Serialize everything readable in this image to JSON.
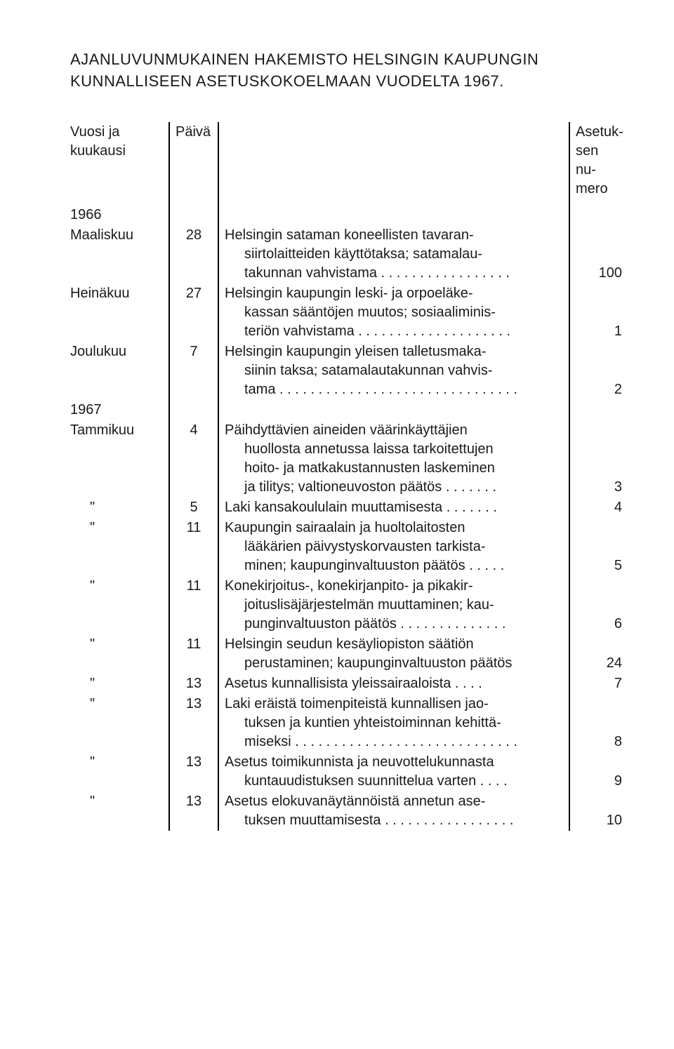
{
  "title_line1": "AJANLUVUNMUKAINEN HAKEMISTO HELSINGIN KAUPUNGIN",
  "title_line2": "KUNNALLISEEN ASETUSKOKOELMAAN VUODELTA 1967.",
  "headers": {
    "col1": "Vuosi ja\nkuukausi",
    "col2": "Päivä",
    "col3": "",
    "col4": "Asetuk-\nsen nu-\nmero"
  },
  "rows": [
    {
      "type": "year",
      "c1": "1966"
    },
    {
      "type": "entry",
      "c1": "Maaliskuu",
      "c2": "28",
      "c3": "Helsingin sataman koneellisten tavaran-\n  siirtolaitteiden käyttötaksa; satamalau-\n  takunnan vahvistama . . . . . . . . . . . . . . . . .",
      "c4": "100"
    },
    {
      "type": "entry",
      "c1": "Heinäkuu",
      "c2": "27",
      "c3": "Helsingin kaupungin leski- ja orpoeläke-\n  kassan sääntöjen muutos; sosiaaliminis-\n  teriön vahvistama . . . . . . . . . . . . . . . . . . . .",
      "c4": "1"
    },
    {
      "type": "entry",
      "c1": "Joulukuu",
      "c2": "7",
      "c3": "Helsingin kaupungin yleisen talletusmaka-\n  siinin taksa; satamalautakunnan vahvis-\n  tama . . . . . . . . . . . . . . . . . . . . . . . . . . . . . . .",
      "c4": "2"
    },
    {
      "type": "year",
      "c1": "1967"
    },
    {
      "type": "entry",
      "c1": "Tammikuu",
      "c2": "4",
      "c3": "Päihdyttävien aineiden väärinkäyttäjien\n  huollosta annetussa laissa tarkoitettujen\n  hoito- ja matkakustannusten laskeminen\n  ja tilitys; valtioneuvoston päätös . . . . . . .",
      "c4": "3"
    },
    {
      "type": "entry",
      "c1": "\"",
      "c2": "5",
      "c3": "Laki kansakoululain muuttamisesta . . . . . . .",
      "c4": "4"
    },
    {
      "type": "entry",
      "c1": "\"",
      "c2": "11",
      "c3": "Kaupungin sairaalain ja huoltolaitosten\n  lääkärien päivystyskorvausten tarkista-\n  minen; kaupunginvaltuuston päätös . . . . .",
      "c4": "5"
    },
    {
      "type": "entry",
      "c1": "\"",
      "c2": "11",
      "c3": "Konekirjoitus-, konekirjanpito- ja pikakir-\n  joituslisäjärjestelmän muuttaminen; kau-\n  punginvaltuuston päätös . . . . . . . . . . . . . .",
      "c4": "6"
    },
    {
      "type": "entry",
      "c1": "\"",
      "c2": "11",
      "c3": "Helsingin seudun kesäyliopiston säätiön\n  perustaminen; kaupunginvaltuuston päätös",
      "c4": "24"
    },
    {
      "type": "entry",
      "c1": "\"",
      "c2": "13",
      "c3": "Asetus kunnallisista yleissairaaloista . . . .",
      "c4": "7"
    },
    {
      "type": "entry",
      "c1": "\"",
      "c2": "13",
      "c3": "Laki eräistä toimenpiteistä kunnallisen jao-\n  tuksen ja kuntien yhteistoiminnan kehittä-\n  miseksi . . . . . . . . . . . . . . . . . . . . . . . . . . . . .",
      "c4": "8"
    },
    {
      "type": "entry",
      "c1": "\"",
      "c2": "13",
      "c3": "Asetus toimikunnista ja neuvottelukunnasta\n  kuntauudistuksen suunnittelua varten . . . .",
      "c4": "9"
    },
    {
      "type": "entry",
      "c1": "\"",
      "c2": "13",
      "c3": "Asetus elokuvanäytännöistä annetun ase-\n  tuksen muuttamisesta . . . . . . . . . . . . . . . . .",
      "c4": "10"
    }
  ]
}
